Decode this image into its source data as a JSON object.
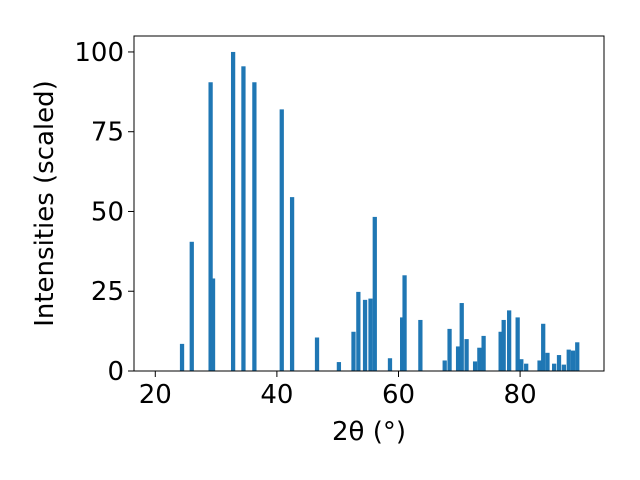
{
  "chart_data": {
    "type": "bar",
    "xlabel": "2θ (°)",
    "ylabel": "Intensities (scaled)",
    "xlim": [
      16.5,
      93.8
    ],
    "ylim": [
      0,
      105
    ],
    "grid": false,
    "bar_width": 0.7,
    "bar_color": "#1f77b4",
    "xticks": [
      20,
      40,
      60,
      80
    ],
    "yticks": [
      0,
      25,
      50,
      75,
      100
    ],
    "x": [
      24.4,
      26.0,
      29.1,
      29.5,
      32.8,
      34.5,
      36.3,
      40.8,
      42.5,
      46.6,
      50.2,
      52.6,
      53.4,
      54.5,
      55.4,
      56.1,
      58.6,
      60.6,
      61.0,
      63.6,
      67.6,
      68.4,
      69.8,
      70.4,
      71.2,
      72.6,
      73.3,
      74.0,
      76.8,
      77.3,
      78.2,
      79.6,
      80.2,
      81.0,
      83.2,
      83.8,
      84.5,
      85.6,
      86.4,
      87.2,
      88.0,
      88.7,
      89.4
    ],
    "values": [
      8.5,
      40.5,
      90.5,
      29.0,
      100.0,
      95.5,
      90.5,
      82.0,
      54.5,
      10.5,
      2.8,
      12.3,
      24.8,
      22.3,
      22.7,
      48.3,
      4.0,
      16.8,
      30.0,
      16.0,
      3.3,
      13.2,
      7.7,
      21.3,
      10.0,
      3.0,
      7.3,
      11.0,
      12.3,
      16.0,
      19.0,
      16.8,
      3.7,
      2.3,
      3.3,
      14.8,
      5.7,
      2.3,
      5.0,
      2.0,
      6.7,
      6.4,
      9.0
    ]
  }
}
